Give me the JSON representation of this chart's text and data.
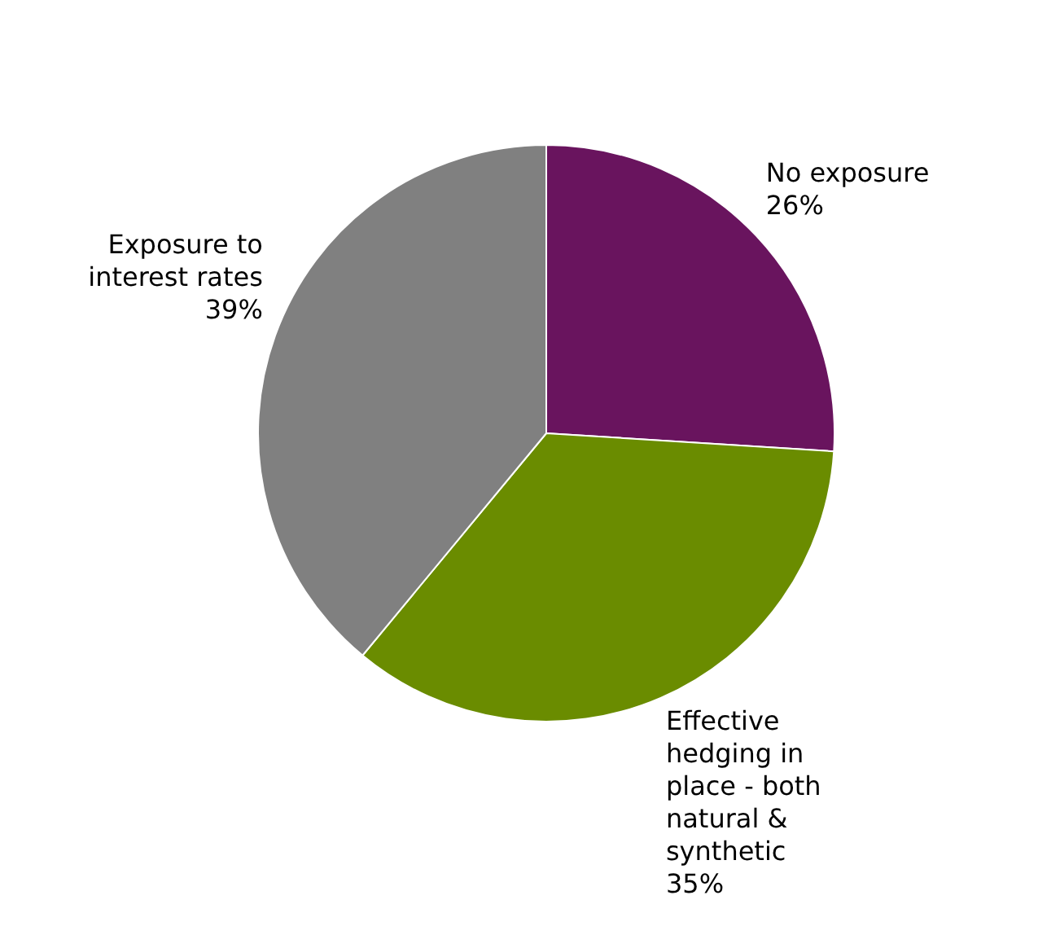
{
  "chart_data": {
    "type": "pie",
    "categories": [
      "No exposure",
      "Effective hedging in place - both natural & synthetic",
      "Exposure to interest rates"
    ],
    "values": [
      26,
      35,
      39
    ],
    "colors": [
      "#69145e",
      "#6a8c00",
      "#808080"
    ],
    "value_labels": [
      "26%",
      "35%",
      "39%"
    ],
    "legend": false
  }
}
